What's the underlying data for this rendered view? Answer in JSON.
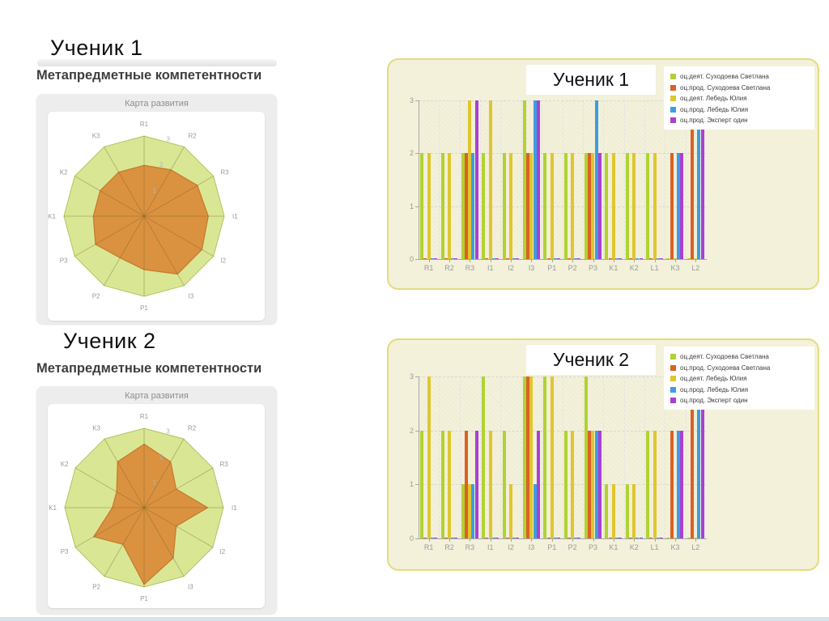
{
  "students": [
    {
      "name": "Ученик 1"
    },
    {
      "name": "Ученик 2"
    }
  ],
  "section_title": "Метапредметные компетентности",
  "series_colors": [
    "#b1d232",
    "#dc6026",
    "#e0c62e",
    "#3d9de0",
    "#ab3fd2"
  ],
  "colors": {
    "panel_cream": "#f3f1da",
    "panel_border": "#e3dc7e",
    "radar_range_fill": "#d9e795",
    "radar_range_stroke": "#b3c25f",
    "radar_value_fill": "#db8e3d",
    "radar_value_stroke": "#c67c2b",
    "radar_spoke": "rgba(110,90,35,0.35)",
    "axis_gray": "#a8a8a8",
    "label_gray": "#9a9a9a"
  },
  "chart_data": [
    {
      "type": "bar",
      "title": "Ученик 1",
      "ylim": [
        0,
        3
      ],
      "yticks": [
        "0",
        "1",
        "2",
        "3"
      ],
      "grid": true,
      "legend_position": "top-right",
      "categories": [
        "R1",
        "R2",
        "R3",
        "I1",
        "I2",
        "I3",
        "P1",
        "P2",
        "P3",
        "K1",
        "K2",
        "L1",
        "K3",
        "L2"
      ],
      "series": [
        {
          "name": "оц.деят. Суходоева Светлана",
          "values": [
            2,
            2,
            2,
            2,
            2,
            3,
            2,
            2,
            2,
            2,
            2,
            2,
            0,
            0
          ]
        },
        {
          "name": "оц.прод. Суходоева Светлана",
          "values": [
            0,
            0,
            2,
            0,
            0,
            2,
            0,
            0,
            2,
            0,
            0,
            0,
            2,
            3
          ]
        },
        {
          "name": "оц.деят. Лебедь Юлия",
          "values": [
            2,
            2,
            3,
            3,
            2,
            2,
            2,
            2,
            2,
            2,
            2,
            2,
            0,
            0
          ]
        },
        {
          "name": "оц.прод. Лебедь Юлия",
          "values": [
            0,
            0,
            2,
            0,
            0,
            3,
            0,
            0,
            3,
            0,
            0,
            0,
            2,
            3
          ]
        },
        {
          "name": "оц.прод. Эксперт один",
          "values": [
            0,
            0,
            3,
            0,
            0,
            3,
            0,
            0,
            2,
            0,
            0,
            0,
            2,
            3
          ]
        }
      ]
    },
    {
      "type": "bar",
      "title": "Ученик 2",
      "ylim": [
        0,
        3
      ],
      "yticks": [
        "0",
        "1",
        "2",
        "3"
      ],
      "grid": true,
      "legend_position": "top-right",
      "categories": [
        "R1",
        "R2",
        "R3",
        "I1",
        "I2",
        "I3",
        "P1",
        "P2",
        "P3",
        "K1",
        "K2",
        "L1",
        "K3",
        "L2"
      ],
      "series": [
        {
          "name": "оц.деят. Суходоева Светлана",
          "values": [
            2,
            2,
            1,
            3,
            2,
            3,
            3,
            2,
            3,
            1,
            1,
            2,
            0,
            0
          ]
        },
        {
          "name": "оц.прод. Суходоева Светлана",
          "values": [
            0,
            0,
            2,
            0,
            0,
            3,
            0,
            0,
            2,
            0,
            0,
            0,
            2,
            3
          ]
        },
        {
          "name": "оц.деят. Лебедь Юлия",
          "values": [
            3,
            2,
            1,
            2,
            1,
            3,
            3,
            2,
            2,
            1,
            1,
            2,
            0,
            0
          ]
        },
        {
          "name": "оц.прод. Лебедь Юлия",
          "values": [
            0,
            0,
            1,
            0,
            0,
            1,
            0,
            0,
            2,
            0,
            0,
            0,
            2,
            3
          ]
        },
        {
          "name": "оц.прод. Эксперт один",
          "values": [
            0,
            0,
            2,
            0,
            0,
            2,
            0,
            0,
            2,
            0,
            0,
            0,
            2,
            3
          ]
        }
      ]
    },
    {
      "type": "radar",
      "title": "Карта развития",
      "student": "Ученик 1",
      "ylim": [
        0,
        3
      ],
      "tick_labels": [
        "1",
        "2",
        "3"
      ],
      "categories": [
        "R1",
        "R2",
        "R3",
        "I1",
        "I2",
        "I3",
        "P1",
        "P2",
        "P3",
        "K1",
        "K2",
        "K3"
      ],
      "max_range_value": 3,
      "values": [
        1.9,
        2.0,
        2.3,
        2.4,
        2.5,
        2.5,
        2.0,
        1.8,
        2.1,
        1.9,
        1.9,
        1.9
      ]
    },
    {
      "type": "radar",
      "title": "Карта развития",
      "student": "Ученик 2",
      "ylim": [
        0,
        3
      ],
      "tick_labels": [
        "1",
        "2",
        "3"
      ],
      "categories": [
        "R1",
        "R2",
        "R3",
        "I1",
        "I2",
        "I3",
        "P1",
        "P2",
        "P3",
        "K1",
        "K2",
        "K3"
      ],
      "max_range_value": 3,
      "values": [
        2.4,
        2.0,
        1.4,
        2.4,
        1.4,
        2.2,
        2.9,
        1.6,
        2.2,
        1.2,
        1.2,
        2.0
      ]
    }
  ]
}
